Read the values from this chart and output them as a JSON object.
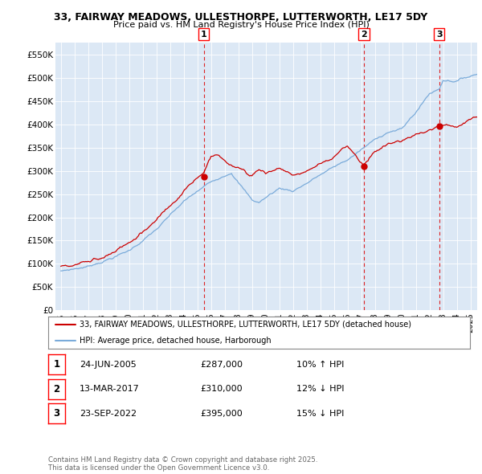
{
  "title_line1": "33, FAIRWAY MEADOWS, ULLESTHORPE, LUTTERWORTH, LE17 5DY",
  "title_line2": "Price paid vs. HM Land Registry's House Price Index (HPI)",
  "background_color": "#dce8f5",
  "hpi_color": "#7aabda",
  "price_color": "#cc0000",
  "marker_color": "#cc0000",
  "ylim": [
    0,
    575000
  ],
  "yticks": [
    0,
    50000,
    100000,
    150000,
    200000,
    250000,
    300000,
    350000,
    400000,
    450000,
    500000,
    550000
  ],
  "ytick_labels": [
    "£0",
    "£50K",
    "£100K",
    "£150K",
    "£200K",
    "£250K",
    "£300K",
    "£350K",
    "£400K",
    "£450K",
    "£500K",
    "£550K"
  ],
  "sale_year_floats": [
    2005.47,
    2017.2,
    2022.72
  ],
  "sale_prices": [
    287000,
    310000,
    395000
  ],
  "sale_labels": [
    "1",
    "2",
    "3"
  ],
  "sale_hpi_pct": [
    "10% ↑ HPI",
    "12% ↓ HPI",
    "15% ↓ HPI"
  ],
  "sale_date_labels": [
    "24-JUN-2005",
    "13-MAR-2017",
    "23-SEP-2022"
  ],
  "sale_price_labels": [
    "£287,000",
    "£310,000",
    "£395,000"
  ],
  "legend_line1": "33, FAIRWAY MEADOWS, ULLESTHORPE, LUTTERWORTH, LE17 5DY (detached house)",
  "legend_line2": "HPI: Average price, detached house, Harborough",
  "footer_line1": "Contains HM Land Registry data © Crown copyright and database right 2025.",
  "footer_line2": "This data is licensed under the Open Government Licence v3.0.",
  "xstart_year": 1995,
  "xend_year": 2025
}
